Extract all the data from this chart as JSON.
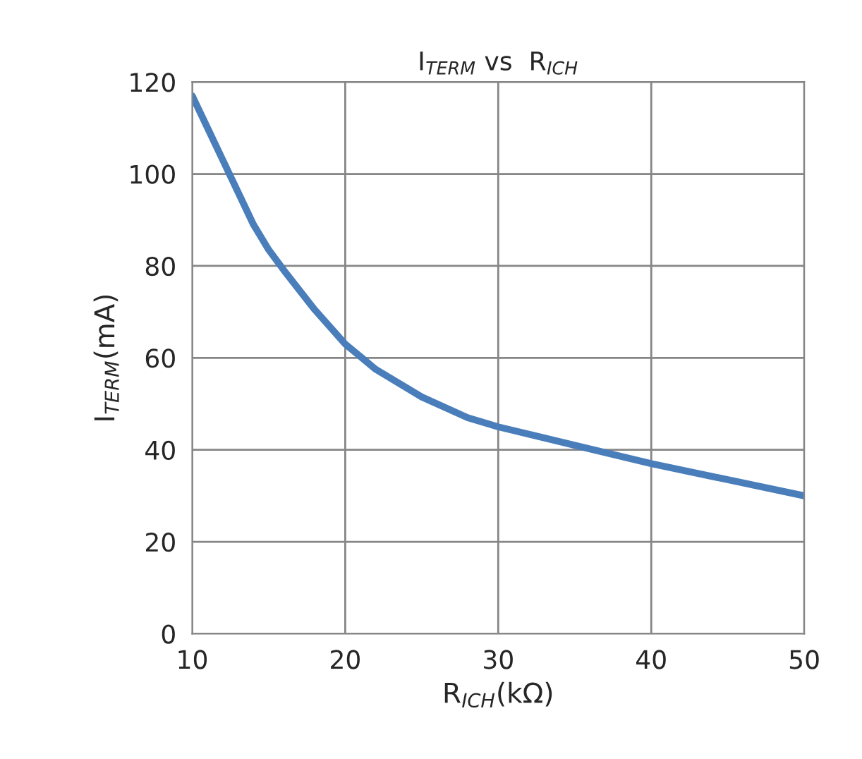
{
  "chart_data": {
    "type": "line",
    "title": "I$_{TERM}$ vs  R$_{ICH}$",
    "xlabel": "R$_{ICH}$(kΩ)",
    "ylabel": "I$_{TERM}$(mA)",
    "x": [
      10,
      11,
      12,
      13,
      14,
      15,
      16,
      18,
      20,
      22,
      25,
      28,
      30,
      35,
      40,
      45,
      50
    ],
    "series": [
      {
        "color": "#4a7ebb",
        "values": [
          117,
          110,
          103,
          96,
          89,
          83.5,
          79,
          70.5,
          63,
          57.5,
          51.5,
          47,
          45,
          41,
          37,
          33.5,
          30
        ]
      }
    ],
    "xlim": [
      10,
      50
    ],
    "xticks": [
      10,
      20,
      30,
      40,
      50
    ],
    "ylim": [
      0,
      120
    ],
    "yticks": [
      0,
      20,
      40,
      60,
      80,
      100,
      120
    ],
    "grid": true,
    "marker": "none",
    "line_style": "solid"
  }
}
